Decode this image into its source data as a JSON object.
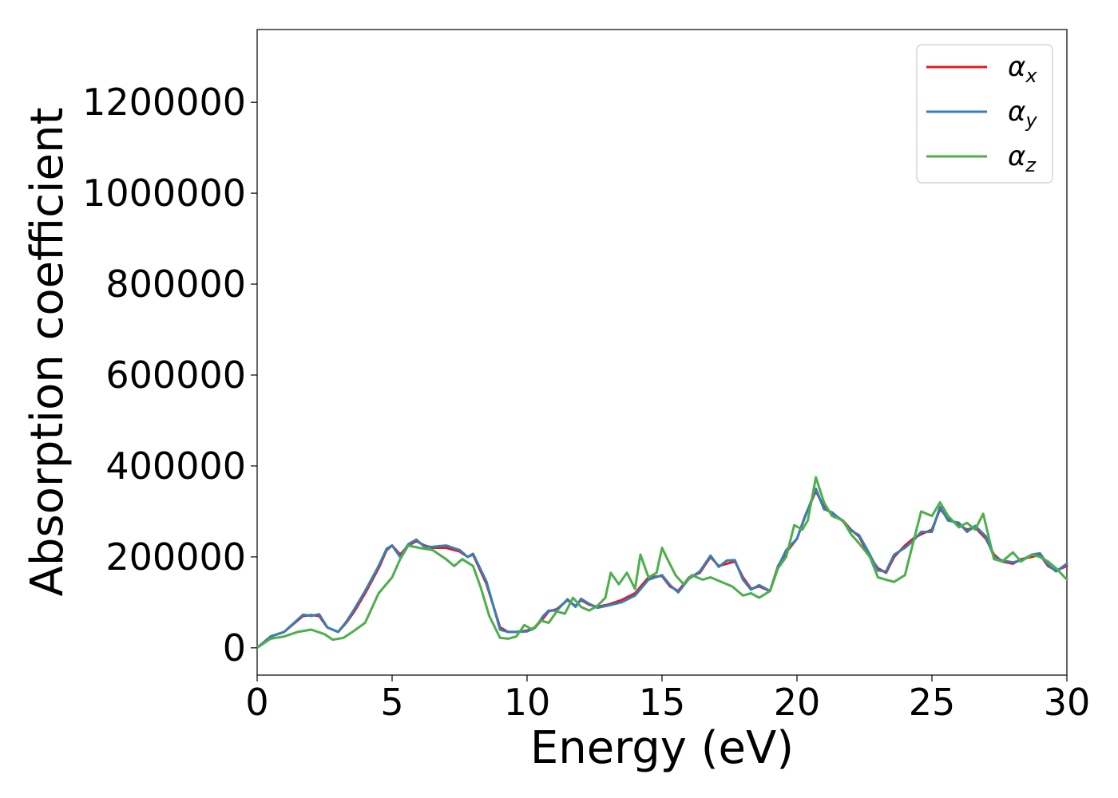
{
  "chart_data": {
    "type": "line",
    "xlabel": "Energy (eV)",
    "ylabel": "Absorption coefficient",
    "xlim": [
      0,
      30
    ],
    "ylim": [
      -60000,
      1360000
    ],
    "xticks": [
      0,
      5,
      10,
      15,
      20,
      25,
      30
    ],
    "yticks": [
      0,
      200000,
      400000,
      600000,
      800000,
      1000000,
      1200000
    ],
    "grid": false,
    "legend_position": "top-right",
    "series": [
      {
        "name": "α_x",
        "legend_symbol": "α",
        "legend_subscript": "x",
        "color": "#e41a1c",
        "x": [
          0,
          0.5,
          1,
          1.5,
          1.7,
          2,
          2.3,
          2.6,
          3,
          3.3,
          3.6,
          4,
          4.5,
          4.8,
          5,
          5.3,
          5.6,
          5.9,
          6.2,
          6.5,
          7,
          7.5,
          7.8,
          8,
          8.5,
          9,
          9.3,
          9.6,
          10,
          10.3,
          10.6,
          10.8,
          11.1,
          11.5,
          11.8,
          12,
          12.3,
          12.6,
          13,
          13.5,
          14,
          14.5,
          15,
          15.3,
          15.6,
          16,
          16.4,
          16.8,
          17.1,
          17.4,
          17.7,
          18,
          18.3,
          18.6,
          19,
          19.3,
          19.6,
          20,
          20.3,
          20.7,
          21,
          21.3,
          21.7,
          22,
          22.3,
          22.7,
          23,
          23.3,
          23.6,
          24,
          24.3,
          24.6,
          25,
          25.3,
          25.6,
          26,
          26.3,
          26.6,
          27,
          27.3,
          27.6,
          28,
          28.3,
          28.7,
          29,
          29.3,
          29.6,
          30
        ],
        "y": [
          0,
          25000,
          35000,
          60000,
          70000,
          72000,
          70000,
          45000,
          35000,
          55000,
          80000,
          120000,
          175000,
          215000,
          225000,
          205000,
          225000,
          235000,
          225000,
          220000,
          220000,
          212000,
          200000,
          205000,
          140000,
          45000,
          35000,
          35000,
          38000,
          45000,
          65000,
          80000,
          85000,
          105000,
          92000,
          105000,
          95000,
          90000,
          95000,
          105000,
          120000,
          155000,
          158000,
          135000,
          125000,
          155000,
          165000,
          200000,
          180000,
          185000,
          190000,
          155000,
          130000,
          135000,
          125000,
          180000,
          210000,
          240000,
          290000,
          345000,
          310000,
          295000,
          280000,
          260000,
          245000,
          200000,
          175000,
          165000,
          200000,
          225000,
          240000,
          250000,
          260000,
          305000,
          285000,
          270000,
          260000,
          265000,
          240000,
          205000,
          190000,
          185000,
          195000,
          200000,
          205000,
          180000,
          170000,
          180000
        ]
      },
      {
        "name": "α_y",
        "legend_symbol": "α",
        "legend_subscript": "y",
        "color": "#377eb8",
        "x": [
          0,
          0.5,
          1,
          1.5,
          1.7,
          2,
          2.3,
          2.6,
          3,
          3.3,
          3.6,
          4,
          4.5,
          4.8,
          5,
          5.3,
          5.6,
          5.9,
          6.2,
          6.5,
          7,
          7.5,
          7.8,
          8,
          8.5,
          9,
          9.3,
          9.6,
          10,
          10.3,
          10.6,
          10.8,
          11.1,
          11.5,
          11.8,
          12,
          12.3,
          12.6,
          13,
          13.5,
          14,
          14.5,
          15,
          15.3,
          15.6,
          16,
          16.4,
          16.8,
          17.1,
          17.4,
          17.7,
          18,
          18.3,
          18.6,
          19,
          19.3,
          19.6,
          20,
          20.3,
          20.7,
          21,
          21.3,
          21.7,
          22,
          22.3,
          22.7,
          23,
          23.3,
          23.6,
          24,
          24.3,
          24.6,
          25,
          25.3,
          25.6,
          26,
          26.3,
          26.6,
          27,
          27.3,
          27.6,
          28,
          28.3,
          28.7,
          29,
          29.3,
          29.6,
          30
        ],
        "y": [
          0,
          25000,
          35000,
          62000,
          73000,
          70000,
          74000,
          45000,
          35000,
          57000,
          85000,
          125000,
          180000,
          218000,
          225000,
          200000,
          228000,
          238000,
          222000,
          222000,
          225000,
          215000,
          200000,
          207000,
          145000,
          40000,
          35000,
          35000,
          36000,
          44000,
          70000,
          82000,
          82000,
          107000,
          90000,
          108000,
          97000,
          88000,
          93000,
          100000,
          115000,
          150000,
          160000,
          138000,
          122000,
          152000,
          168000,
          203000,
          178000,
          192000,
          193000,
          150000,
          128000,
          138000,
          125000,
          178000,
          215000,
          240000,
          288000,
          350000,
          305000,
          298000,
          278000,
          258000,
          248000,
          205000,
          170000,
          168000,
          205000,
          220000,
          235000,
          255000,
          255000,
          310000,
          280000,
          275000,
          255000,
          268000,
          245000,
          200000,
          192000,
          188000,
          192000,
          205000,
          208000,
          183000,
          168000,
          185000
        ]
      },
      {
        "name": "α_z",
        "legend_symbol": "α",
        "legend_subscript": "z",
        "color": "#4daf4a",
        "x": [
          0,
          0.5,
          1,
          1.5,
          2,
          2.5,
          2.8,
          3.2,
          3.6,
          4,
          4.5,
          5,
          5.3,
          5.6,
          6,
          6.5,
          7,
          7.3,
          7.6,
          8,
          8.3,
          8.6,
          9,
          9.3,
          9.6,
          9.9,
          10.2,
          10.5,
          10.8,
          11.1,
          11.4,
          11.7,
          12,
          12.3,
          12.6,
          12.9,
          13.1,
          13.4,
          13.7,
          14,
          14.2,
          14.5,
          14.8,
          15,
          15.2,
          15.5,
          15.8,
          16.1,
          16.5,
          16.8,
          17.2,
          17.6,
          18,
          18.3,
          18.6,
          19,
          19.3,
          19.6,
          19.9,
          20.2,
          20.4,
          20.7,
          21,
          21.3,
          21.7,
          22,
          22.3,
          22.7,
          23,
          23.3,
          23.6,
          24,
          24.3,
          24.6,
          25,
          25.3,
          25.6,
          26,
          26.3,
          26.6,
          26.9,
          27.3,
          27.6,
          28,
          28.3,
          28.7,
          29,
          29.3,
          29.6,
          30
        ],
        "y": [
          0,
          20000,
          25000,
          35000,
          40000,
          30000,
          18000,
          22000,
          38000,
          55000,
          120000,
          155000,
          195000,
          225000,
          220000,
          215000,
          195000,
          180000,
          195000,
          180000,
          130000,
          70000,
          22000,
          20000,
          25000,
          50000,
          40000,
          60000,
          55000,
          80000,
          75000,
          110000,
          90000,
          82000,
          92000,
          110000,
          165000,
          140000,
          165000,
          130000,
          205000,
          155000,
          165000,
          220000,
          195000,
          160000,
          140000,
          160000,
          150000,
          155000,
          145000,
          135000,
          115000,
          120000,
          110000,
          125000,
          175000,
          200000,
          270000,
          260000,
          280000,
          375000,
          320000,
          290000,
          280000,
          250000,
          230000,
          200000,
          155000,
          150000,
          145000,
          160000,
          230000,
          300000,
          290000,
          320000,
          290000,
          265000,
          275000,
          260000,
          295000,
          195000,
          190000,
          210000,
          190000,
          205000,
          200000,
          190000,
          175000,
          150000
        ]
      }
    ]
  }
}
